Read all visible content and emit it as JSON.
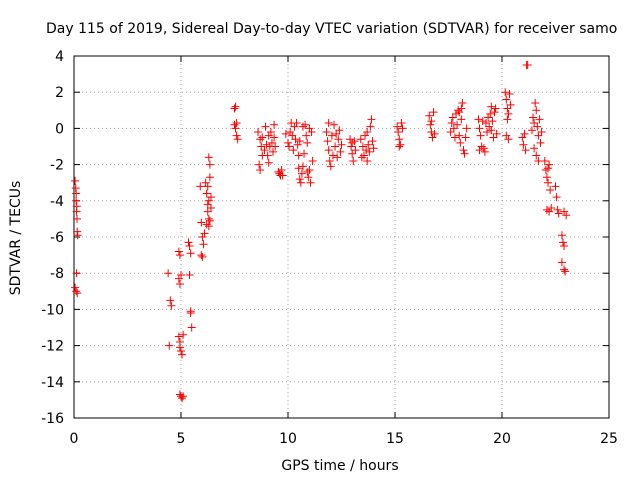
{
  "chart_data": {
    "type": "scatter",
    "title": "Day 115 of 2019, Sidereal Day-to-day VTEC variation (SDTVAR) for receiver samo",
    "xlabel": "GPS time / hours",
    "ylabel": "SDTVAR / TECUs",
    "xlim": [
      0,
      25
    ],
    "ylim": [
      -16,
      4
    ],
    "xticks": [
      0,
      5,
      10,
      15,
      20,
      25
    ],
    "yticks": [
      -16,
      -14,
      -12,
      -10,
      -8,
      -6,
      -4,
      -2,
      0,
      2,
      4
    ],
    "xtick_labels": [
      "0",
      "5",
      "10",
      "15",
      "20",
      "25"
    ],
    "ytick_labels": [
      "-16",
      "-14",
      "-12",
      "-10",
      "-8",
      "-6",
      "-4",
      "-2",
      "0",
      "2",
      "4"
    ],
    "grid": true,
    "marker": "+",
    "color": "#ff0000",
    "series": [
      {
        "name": "samo",
        "points": [
          [
            0.05,
            -2.9
          ],
          [
            0.08,
            -3.3
          ],
          [
            0.1,
            -4.0
          ],
          [
            0.12,
            -4.6
          ],
          [
            0.14,
            -5.0
          ],
          [
            0.15,
            -5.7
          ],
          [
            0.17,
            -5.9
          ],
          [
            0.05,
            -8.8
          ],
          [
            0.1,
            -9.0
          ],
          [
            0.12,
            -8.0
          ],
          [
            0.15,
            -9.1
          ],
          [
            0.1,
            -3.6
          ],
          [
            0.13,
            -4.3
          ],
          [
            4.4,
            -8.0
          ],
          [
            4.5,
            -9.5
          ],
          [
            4.55,
            -9.8
          ],
          [
            4.45,
            -12.0
          ],
          [
            4.9,
            -6.8
          ],
          [
            4.95,
            -7.0
          ],
          [
            4.9,
            -8.3
          ],
          [
            4.95,
            -8.6
          ],
          [
            5.0,
            -8.1
          ],
          [
            4.9,
            -11.5
          ],
          [
            4.95,
            -11.8
          ],
          [
            5.0,
            -12.3
          ],
          [
            5.05,
            -12.5
          ],
          [
            5.1,
            -11.4
          ],
          [
            4.95,
            -12.1
          ],
          [
            4.95,
            -14.7
          ],
          [
            5.0,
            -14.8
          ],
          [
            5.05,
            -14.9
          ],
          [
            5.1,
            -14.8
          ],
          [
            5.35,
            -6.3
          ],
          [
            5.4,
            -6.5
          ],
          [
            5.45,
            -6.9
          ],
          [
            5.4,
            -8.1
          ],
          [
            5.45,
            -10.1
          ],
          [
            5.5,
            -11.0
          ],
          [
            5.45,
            -10.2
          ],
          [
            5.9,
            -3.2
          ],
          [
            5.95,
            -5.2
          ],
          [
            6.0,
            -6.0
          ],
          [
            6.05,
            -6.4
          ],
          [
            6.0,
            -7.1
          ],
          [
            5.95,
            -7.0
          ],
          [
            6.1,
            -5.8
          ],
          [
            6.15,
            -3.0
          ],
          [
            6.2,
            -3.6
          ],
          [
            6.25,
            -4.2
          ],
          [
            6.25,
            -4.6
          ],
          [
            6.3,
            -5.0
          ],
          [
            6.3,
            -4.0
          ],
          [
            6.3,
            -1.6
          ],
          [
            6.35,
            -2.0
          ],
          [
            6.35,
            -2.7
          ],
          [
            6.4,
            -3.8
          ],
          [
            6.4,
            -4.4
          ],
          [
            6.35,
            -5.1
          ],
          [
            6.2,
            -5.3
          ],
          [
            6.3,
            -5.4
          ],
          [
            6.25,
            -3.2
          ],
          [
            7.5,
            1.1
          ],
          [
            7.55,
            1.2
          ],
          [
            7.6,
            0.3
          ],
          [
            7.55,
            0.0
          ],
          [
            7.6,
            -0.4
          ],
          [
            7.65,
            -0.6
          ],
          [
            7.5,
            0.2
          ],
          [
            8.6,
            -0.2
          ],
          [
            8.7,
            -0.6
          ],
          [
            8.75,
            -1.0
          ],
          [
            8.8,
            -1.5
          ],
          [
            8.65,
            -2.0
          ],
          [
            8.7,
            -2.3
          ],
          [
            8.8,
            -0.5
          ],
          [
            8.9,
            -1.2
          ],
          [
            8.95,
            0.1
          ],
          [
            9.0,
            -0.9
          ],
          [
            9.05,
            -1.5
          ],
          [
            9.1,
            -0.4
          ],
          [
            9.1,
            -1.9
          ],
          [
            9.15,
            -1.0
          ],
          [
            9.2,
            -0.2
          ],
          [
            9.25,
            -0.8
          ],
          [
            9.3,
            -1.3
          ],
          [
            9.35,
            0.2
          ],
          [
            9.35,
            -0.5
          ],
          [
            9.4,
            -1.0
          ],
          [
            9.6,
            -2.5
          ],
          [
            9.65,
            -2.6
          ],
          [
            9.7,
            -2.3
          ],
          [
            9.75,
            -2.6
          ],
          [
            9.55,
            -2.4
          ],
          [
            9.9,
            -0.3
          ],
          [
            10.0,
            -0.8
          ],
          [
            10.05,
            -1.0
          ],
          [
            10.1,
            -0.2
          ],
          [
            10.15,
            0.3
          ],
          [
            10.2,
            -0.4
          ],
          [
            10.25,
            -1.2
          ],
          [
            10.3,
            0.1
          ],
          [
            10.35,
            -0.6
          ],
          [
            10.4,
            0.3
          ],
          [
            10.45,
            -0.9
          ],
          [
            10.5,
            -1.5
          ],
          [
            10.5,
            -2.2
          ],
          [
            10.55,
            -2.8
          ],
          [
            10.6,
            -3.0
          ],
          [
            10.65,
            -2.5
          ],
          [
            10.7,
            -2.1
          ],
          [
            10.75,
            -1.4
          ],
          [
            10.8,
            0.2
          ],
          [
            10.85,
            -0.4
          ],
          [
            10.9,
            -0.8
          ],
          [
            10.9,
            -2.4
          ],
          [
            10.95,
            -2.7
          ],
          [
            11.0,
            -2.3
          ],
          [
            11.05,
            -3.0
          ],
          [
            11.1,
            -0.2
          ],
          [
            11.15,
            -1.8
          ],
          [
            11.0,
            0.0
          ],
          [
            10.7,
            0.1
          ],
          [
            10.55,
            -0.7
          ],
          [
            11.8,
            -0.2
          ],
          [
            11.85,
            -0.7
          ],
          [
            11.9,
            -1.2
          ],
          [
            11.95,
            -1.8
          ],
          [
            12.0,
            -2.1
          ],
          [
            12.05,
            -0.4
          ],
          [
            12.1,
            -1.5
          ],
          [
            12.15,
            0.2
          ],
          [
            12.2,
            -1.0
          ],
          [
            12.3,
            -1.6
          ],
          [
            12.35,
            -0.6
          ],
          [
            12.4,
            -0.1
          ],
          [
            12.45,
            -1.3
          ],
          [
            12.5,
            -0.9
          ],
          [
            11.9,
            0.3
          ],
          [
            12.25,
            -0.3
          ],
          [
            12.9,
            -0.6
          ],
          [
            12.95,
            -1.0
          ],
          [
            13.0,
            -1.4
          ],
          [
            13.05,
            -1.8
          ],
          [
            13.0,
            -0.8
          ],
          [
            13.1,
            -0.7
          ],
          [
            13.15,
            -1.2
          ],
          [
            13.4,
            -0.6
          ],
          [
            13.5,
            -1.0
          ],
          [
            13.55,
            -1.5
          ],
          [
            13.6,
            -0.4
          ],
          [
            13.65,
            -1.2
          ],
          [
            13.7,
            -0.2
          ],
          [
            13.75,
            -0.9
          ],
          [
            13.8,
            -1.3
          ],
          [
            13.85,
            0.1
          ],
          [
            13.9,
            0.5
          ],
          [
            13.95,
            -0.7
          ],
          [
            14.0,
            -1.1
          ],
          [
            13.45,
            -1.6
          ],
          [
            13.7,
            -1.8
          ],
          [
            15.1,
            0.1
          ],
          [
            15.15,
            -0.2
          ],
          [
            15.2,
            -0.6
          ],
          [
            15.25,
            -0.9
          ],
          [
            15.3,
            0.3
          ],
          [
            15.35,
            0.0
          ],
          [
            15.2,
            -1.0
          ],
          [
            16.6,
            0.7
          ],
          [
            16.65,
            0.2
          ],
          [
            16.7,
            -0.2
          ],
          [
            16.75,
            -0.5
          ],
          [
            16.8,
            0.9
          ],
          [
            16.85,
            -0.3
          ],
          [
            16.7,
            0.4
          ],
          [
            17.6,
            -0.2
          ],
          [
            17.65,
            0.3
          ],
          [
            17.7,
            0.6
          ],
          [
            17.75,
            0.0
          ],
          [
            17.8,
            -0.5
          ],
          [
            17.85,
            0.8
          ],
          [
            17.9,
            0.2
          ],
          [
            17.95,
            1.0
          ],
          [
            18.0,
            -0.4
          ],
          [
            18.05,
            -0.8
          ],
          [
            18.1,
            0.5
          ],
          [
            18.15,
            1.4
          ],
          [
            18.2,
            -1.2
          ],
          [
            18.25,
            -1.4
          ],
          [
            18.3,
            -0.5
          ],
          [
            18.35,
            0.0
          ],
          [
            18.1,
            1.1
          ],
          [
            18.0,
            0.9
          ],
          [
            18.9,
            0.5
          ],
          [
            18.95,
            0.0
          ],
          [
            19.0,
            -0.4
          ],
          [
            19.05,
            -1.0
          ],
          [
            19.1,
            0.4
          ],
          [
            19.15,
            -1.1
          ],
          [
            19.2,
            -1.3
          ],
          [
            19.25,
            0.3
          ],
          [
            19.3,
            -0.2
          ],
          [
            19.35,
            0.6
          ],
          [
            19.4,
            0.1
          ],
          [
            19.45,
            0.8
          ],
          [
            19.5,
            1.2
          ],
          [
            19.55,
            0.4
          ],
          [
            19.6,
            -0.5
          ],
          [
            19.65,
            0.9
          ],
          [
            19.7,
            1.1
          ],
          [
            19.75,
            -0.3
          ],
          [
            18.95,
            -1.2
          ],
          [
            19.5,
            -0.1
          ],
          [
            20.15,
            2.0
          ],
          [
            20.2,
            1.6
          ],
          [
            20.25,
            1.1
          ],
          [
            20.3,
            0.8
          ],
          [
            20.35,
            1.9
          ],
          [
            20.4,
            1.3
          ],
          [
            20.2,
            -0.4
          ],
          [
            20.3,
            -0.6
          ],
          [
            20.25,
            0.5
          ],
          [
            21.15,
            3.5
          ],
          [
            21.2,
            3.5
          ],
          [
            20.95,
            -0.5
          ],
          [
            21.0,
            -0.9
          ],
          [
            21.1,
            -1.2
          ],
          [
            21.05,
            -0.3
          ],
          [
            21.4,
            -0.1
          ],
          [
            21.45,
            0.6
          ],
          [
            21.5,
            0.3
          ],
          [
            21.55,
            1.4
          ],
          [
            21.6,
            1.0
          ],
          [
            21.65,
            0.1
          ],
          [
            21.7,
            -0.4
          ],
          [
            21.75,
            0.5
          ],
          [
            21.8,
            -0.8
          ],
          [
            21.85,
            -0.2
          ],
          [
            21.5,
            -1.1
          ],
          [
            21.6,
            -1.5
          ],
          [
            21.7,
            -1.8
          ],
          [
            22.0,
            -1.8
          ],
          [
            22.05,
            -2.3
          ],
          [
            22.1,
            -2.7
          ],
          [
            22.15,
            -3.0
          ],
          [
            22.2,
            -2.0
          ],
          [
            22.25,
            -3.4
          ],
          [
            22.1,
            -4.5
          ],
          [
            22.2,
            -4.6
          ],
          [
            22.3,
            -4.4
          ],
          [
            22.15,
            -2.2
          ],
          [
            22.5,
            -3.2
          ],
          [
            22.55,
            -3.8
          ],
          [
            22.6,
            -4.5
          ],
          [
            22.65,
            -4.7
          ],
          [
            22.8,
            -5.9
          ],
          [
            22.85,
            -6.3
          ],
          [
            22.9,
            -6.5
          ],
          [
            22.8,
            -7.4
          ],
          [
            22.9,
            -7.8
          ],
          [
            22.95,
            -7.9
          ],
          [
            22.9,
            -4.6
          ],
          [
            23.0,
            -4.8
          ]
        ]
      }
    ]
  }
}
